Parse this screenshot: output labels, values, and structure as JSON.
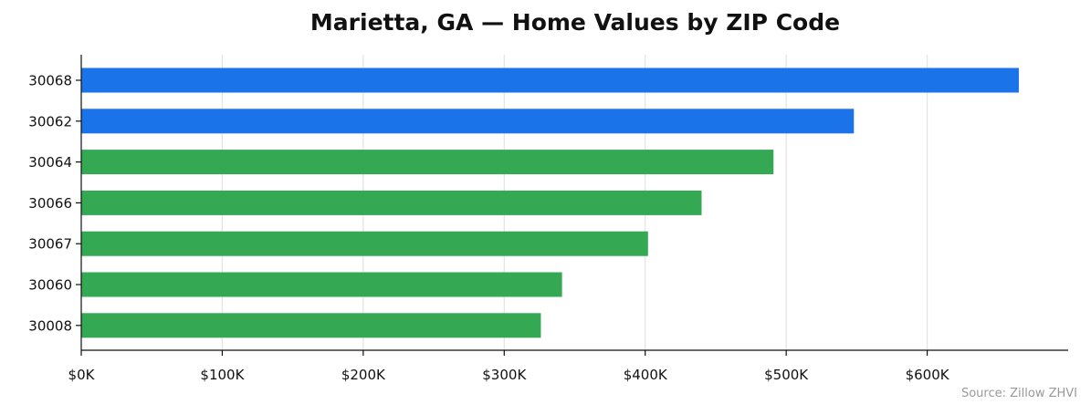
{
  "chart_data": {
    "type": "bar",
    "orientation": "horizontal",
    "title": "Marietta, GA — Home Values by ZIP Code",
    "categories": [
      "30068",
      "30062",
      "30064",
      "30066",
      "30067",
      "30060",
      "30008"
    ],
    "values": [
      665000,
      548000,
      491000,
      440000,
      402000,
      341000,
      326000
    ],
    "bar_colors": [
      "#1a73e8",
      "#1a73e8",
      "#34a853",
      "#34a853",
      "#34a853",
      "#34a853",
      "#34a853"
    ],
    "xlim": [
      0,
      700000
    ],
    "x_ticks": [
      0,
      100000,
      200000,
      300000,
      400000,
      500000,
      600000
    ],
    "x_tick_labels": [
      "$0K",
      "$100K",
      "$200K",
      "$300K",
      "$400K",
      "$500K",
      "$600K"
    ],
    "xlabel": "",
    "ylabel": "",
    "grid": "vertical",
    "source": "Source: Zillow ZHVI"
  }
}
